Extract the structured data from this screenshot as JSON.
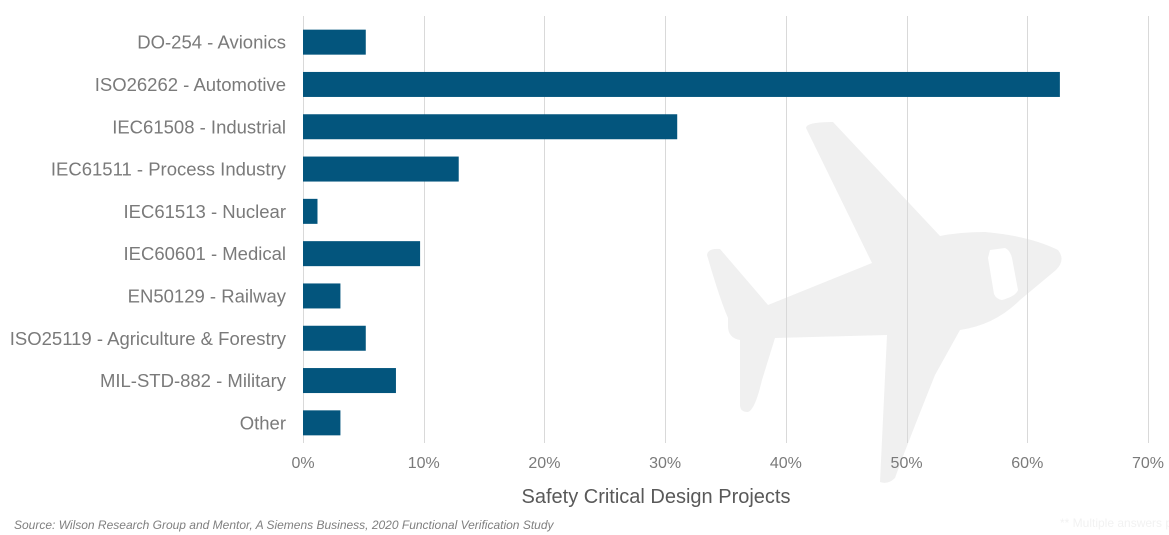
{
  "chart_data": {
    "type": "bar",
    "orientation": "horizontal",
    "title": "",
    "xlabel": "Safety Critical Design Projects",
    "ylabel": "",
    "xlim": [
      0,
      70
    ],
    "x_unit": "%",
    "x_ticks": [
      0,
      10,
      20,
      30,
      40,
      50,
      60,
      70
    ],
    "x_tick_labels": [
      "0%",
      "10%",
      "20%",
      "30%",
      "40%",
      "50%",
      "60%",
      "70%"
    ],
    "grid": "vertical",
    "legend": "none",
    "categories": [
      "DO-254 - Avionics",
      "ISO26262 - Automotive",
      "IEC61508 - Industrial",
      "IEC61511 - Process Industry",
      "IEC61513 - Nuclear",
      "IEC60601 - Medical",
      "EN50129 - Railway",
      "ISO25119 - Agriculture & Forestry",
      "MIL-STD-882 - Military",
      "Other"
    ],
    "values": [
      5.2,
      62.7,
      31.0,
      12.9,
      1.2,
      9.7,
      3.1,
      5.2,
      7.7,
      3.1
    ],
    "bar_color": "#03557d",
    "watermark": "airplane-icon"
  },
  "footer": {
    "source": "Source:  Wilson Research Group and Mentor, A Siemens Business, 2020 Functional Verification Study",
    "note": "** Multiple answers p"
  },
  "colors": {
    "bar": "#03557d",
    "grid": "#d9d9d9",
    "label": "#7a7a7a",
    "axis_title": "#595959",
    "watermark": "#f0f0f0"
  }
}
